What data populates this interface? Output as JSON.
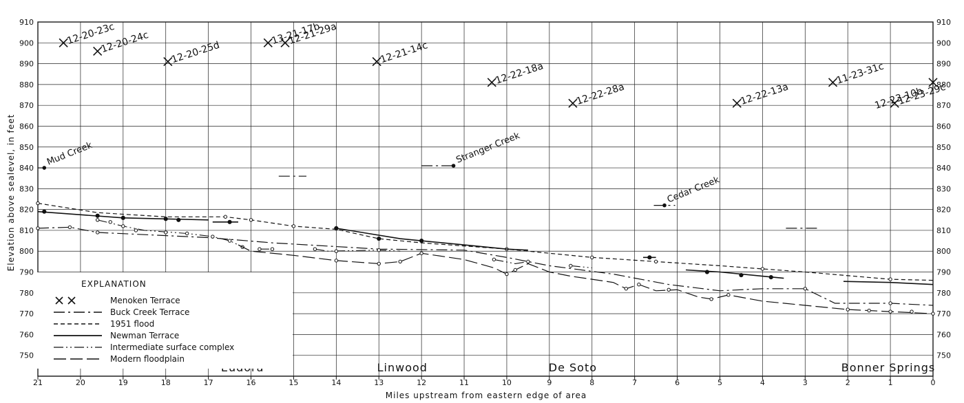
{
  "chart_data": {
    "type": "line",
    "xlabel": "Miles upstream from eastern edge of area",
    "ylabel": "Elevation above sealevel, in feet",
    "xlim": [
      21,
      0
    ],
    "ylim": [
      740,
      910
    ],
    "x_ticks": [
      "21",
      "20",
      "19",
      "18",
      "17",
      "16",
      "15",
      "14",
      "13",
      "12",
      "11",
      "10",
      "9",
      "8",
      "7",
      "6",
      "5",
      "4",
      "3",
      "2",
      "1",
      "0"
    ],
    "y_ticks": [
      "750",
      "760",
      "770",
      "780",
      "790",
      "800",
      "810",
      "820",
      "830",
      "840",
      "850",
      "860",
      "870",
      "880",
      "890",
      "900",
      "910"
    ],
    "grid": true,
    "legend_title": "EXPLANATION",
    "legend_position": "bottom-left",
    "places": [
      {
        "name": "Eudora",
        "x": 16.2
      },
      {
        "name": "Linwood",
        "x": 12.45
      },
      {
        "name": "De Soto",
        "x": 8.45
      },
      {
        "name": "Bonner Springs",
        "x": 1.05
      }
    ],
    "creeks": [
      {
        "name": "Mud Creek",
        "x": 20.85,
        "y": 840
      },
      {
        "name": "Stranger Creek",
        "x": 11.25,
        "y": 841
      },
      {
        "name": "Cedar Creek",
        "x": 6.3,
        "y": 822
      }
    ],
    "menoken_terrace": {
      "name": "Menoken Terrace",
      "points": [
        {
          "label": "12-20-23c",
          "x": 20.4,
          "y": 900
        },
        {
          "label": "12-20-24c",
          "x": 19.6,
          "y": 896
        },
        {
          "label": "12-20-25d",
          "x": 17.95,
          "y": 891
        },
        {
          "label": "13-21-17b",
          "x": 15.6,
          "y": 900
        },
        {
          "label": "12-21-29a",
          "x": 15.2,
          "y": 900
        },
        {
          "label": "12-21-14c",
          "x": 13.05,
          "y": 891
        },
        {
          "label": "12-22-18a",
          "x": 10.35,
          "y": 881
        },
        {
          "label": "12-22-28a",
          "x": 8.45,
          "y": 871
        },
        {
          "label": "12-22-13a",
          "x": 4.6,
          "y": 871
        },
        {
          "label": "11-23-31c",
          "x": 2.35,
          "y": 881
        },
        {
          "label": "12-23-29c",
          "x": 0.9,
          "y": 871
        },
        {
          "label": "12-23-10b",
          "x": 0.0,
          "y": 881
        }
      ]
    },
    "series": [
      {
        "name": "Buck Creek Terrace",
        "style": "dashdot",
        "segments": [
          [
            [
              21.0,
              840
            ],
            [
              20.85,
              840
            ]
          ],
          [
            [
              15.35,
              836
            ],
            [
              14.7,
              836
            ]
          ],
          [
            [
              12.0,
              841
            ],
            [
              11.25,
              841
            ]
          ],
          [
            [
              6.55,
              822
            ],
            [
              6.05,
              822
            ]
          ],
          [
            [
              3.45,
              811
            ],
            [
              2.7,
              811
            ]
          ],
          [
            [
              21.0,
              811
            ],
            [
              20.25,
              811.5
            ],
            [
              19.6,
              809
            ],
            [
              17.0,
              806.5
            ],
            [
              15.5,
              804
            ],
            [
              13.0,
              801
            ],
            [
              11.0,
              800.5
            ],
            [
              10.0,
              797
            ],
            [
              9.0,
              793
            ],
            [
              7.5,
              789
            ],
            [
              6.2,
              784
            ],
            [
              5.0,
              781
            ],
            [
              4.0,
              782
            ],
            [
              3.0,
              782
            ],
            [
              2.3,
              775
            ],
            [
              1.0,
              775
            ],
            [
              0.0,
              774
            ]
          ]
        ],
        "dots": [
          [
            21.0,
            811
          ],
          [
            20.25,
            811.5
          ],
          [
            19.6,
            809
          ],
          [
            3.0,
            782
          ],
          [
            1.0,
            775
          ]
        ]
      },
      {
        "name": "1951 flood",
        "style": "dashed",
        "segments": [
          [
            [
              21.0,
              823
            ],
            [
              19.6,
              818.5
            ],
            [
              18.0,
              816.5
            ],
            [
              16.6,
              816.5
            ],
            [
              16.0,
              815
            ],
            [
              15.0,
              812
            ],
            [
              14.0,
              810.5
            ],
            [
              13.0,
              806
            ],
            [
              12.0,
              804
            ],
            [
              10.0,
              801
            ],
            [
              8.0,
              797
            ],
            [
              6.5,
              795
            ],
            [
              5.0,
              793
            ],
            [
              4.0,
              791.5
            ],
            [
              3.0,
              790
            ],
            [
              1.0,
              786.5
            ],
            [
              0.0,
              786
            ]
          ]
        ],
        "dots": [
          [
            21.0,
            823
          ],
          [
            16.6,
            816.5
          ],
          [
            16.0,
            815
          ],
          [
            15.0,
            812
          ],
          [
            13.0,
            806
          ],
          [
            10.0,
            801
          ],
          [
            8.0,
            797
          ],
          [
            6.5,
            795
          ],
          [
            4.0,
            791.5
          ],
          [
            1.0,
            786.5
          ]
        ]
      },
      {
        "name": "Newman Terrace",
        "style": "solid",
        "segments": [
          [
            [
              21.0,
              819
            ],
            [
              19.0,
              816
            ],
            [
              18.0,
              815.5
            ],
            [
              17.0,
              815
            ]
          ],
          [
            [
              16.9,
              814
            ],
            [
              16.3,
              814
            ]
          ],
          [
            [
              14.0,
              811
            ],
            [
              12.5,
              806
            ],
            [
              11.0,
              803
            ],
            [
              10.0,
              801
            ],
            [
              9.5,
              800.5
            ]
          ],
          [
            [
              6.8,
              797
            ],
            [
              6.5,
              797
            ]
          ],
          [
            [
              5.8,
              791
            ],
            [
              5.0,
              790
            ],
            [
              4.0,
              788
            ],
            [
              3.5,
              787
            ]
          ],
          [
            [
              2.1,
              785.5
            ],
            [
              1.0,
              785
            ],
            [
              0.0,
              784
            ]
          ]
        ],
        "dots": [
          [
            20.85,
            819
          ],
          [
            19.6,
            817
          ],
          [
            19.0,
            816
          ],
          [
            18.0,
            815.5
          ],
          [
            17.7,
            815
          ],
          [
            16.5,
            814
          ],
          [
            14.0,
            811
          ],
          [
            13.0,
            806
          ],
          [
            12.0,
            805
          ],
          [
            6.65,
            797
          ],
          [
            5.3,
            790
          ],
          [
            4.5,
            788.5
          ],
          [
            3.8,
            787.5
          ]
        ]
      },
      {
        "name": "Intermediate surface complex",
        "style": "dashdotdot",
        "segments": [
          [
            [
              19.6,
              815
            ],
            [
              19.0,
              812
            ],
            [
              18.5,
              810
            ],
            [
              17.5,
              808.5
            ],
            [
              16.9,
              807
            ],
            [
              16.5,
              805
            ],
            [
              16.2,
              802
            ]
          ],
          [
            [
              15.8,
              801
            ],
            [
              15.5,
              801
            ]
          ],
          [
            [
              14.5,
              801
            ],
            [
              14.2,
              800
            ],
            [
              13.0,
              800.5
            ],
            [
              12.5,
              800
            ]
          ],
          [
            [
              10.3,
              796
            ],
            [
              9.8,
              794
            ],
            [
              9.5,
              795
            ]
          ],
          [
            [
              8.5,
              793
            ],
            [
              8.0,
              792
            ]
          ]
        ],
        "dots": [
          [
            19.6,
            815
          ],
          [
            19.3,
            814
          ],
          [
            19.0,
            812
          ],
          [
            18.7,
            810
          ],
          [
            18.0,
            809
          ],
          [
            17.5,
            808.5
          ],
          [
            16.9,
            807
          ],
          [
            16.5,
            805
          ],
          [
            16.2,
            802
          ],
          [
            15.8,
            801
          ],
          [
            15.5,
            801
          ],
          [
            14.5,
            801
          ],
          [
            14.0,
            800
          ],
          [
            13.0,
            800.5
          ],
          [
            10.3,
            796
          ],
          [
            9.5,
            795
          ],
          [
            8.5,
            793
          ]
        ]
      },
      {
        "name": "Modern floodplain",
        "style": "longdash",
        "segments": [
          [
            [
              16.3,
              803
            ],
            [
              16.0,
              800
            ],
            [
              15.0,
              798
            ],
            [
              14.0,
              795.5
            ],
            [
              13.0,
              794
            ],
            [
              12.5,
              795
            ],
            [
              12.0,
              799
            ],
            [
              11.0,
              796
            ],
            [
              10.3,
              792
            ],
            [
              10.0,
              789
            ],
            [
              9.8,
              791
            ],
            [
              9.5,
              794
            ],
            [
              9.0,
              790
            ],
            [
              8.5,
              788
            ],
            [
              8.0,
              786.5
            ],
            [
              7.5,
              785
            ],
            [
              7.2,
              782
            ],
            [
              6.9,
              784
            ],
            [
              6.5,
              781
            ],
            [
              6.0,
              781.5
            ],
            [
              5.5,
              778
            ],
            [
              5.2,
              777
            ],
            [
              4.8,
              779
            ],
            [
              4.0,
              776
            ],
            [
              3.0,
              774
            ],
            [
              2.0,
              772
            ],
            [
              1.0,
              771
            ],
            [
              0.0,
              770
            ]
          ]
        ],
        "dots": [
          [
            14.0,
            795.5
          ],
          [
            13.0,
            794
          ],
          [
            12.5,
            795
          ],
          [
            12.0,
            799
          ],
          [
            10.0,
            789
          ],
          [
            9.8,
            791
          ],
          [
            7.2,
            782
          ],
          [
            6.9,
            784
          ],
          [
            6.2,
            781.5
          ],
          [
            5.2,
            777
          ],
          [
            4.8,
            779
          ],
          [
            2.0,
            772
          ],
          [
            1.5,
            771.5
          ],
          [
            1.0,
            771
          ],
          [
            0.5,
            771
          ],
          [
            0.0,
            770
          ]
        ]
      }
    ]
  }
}
